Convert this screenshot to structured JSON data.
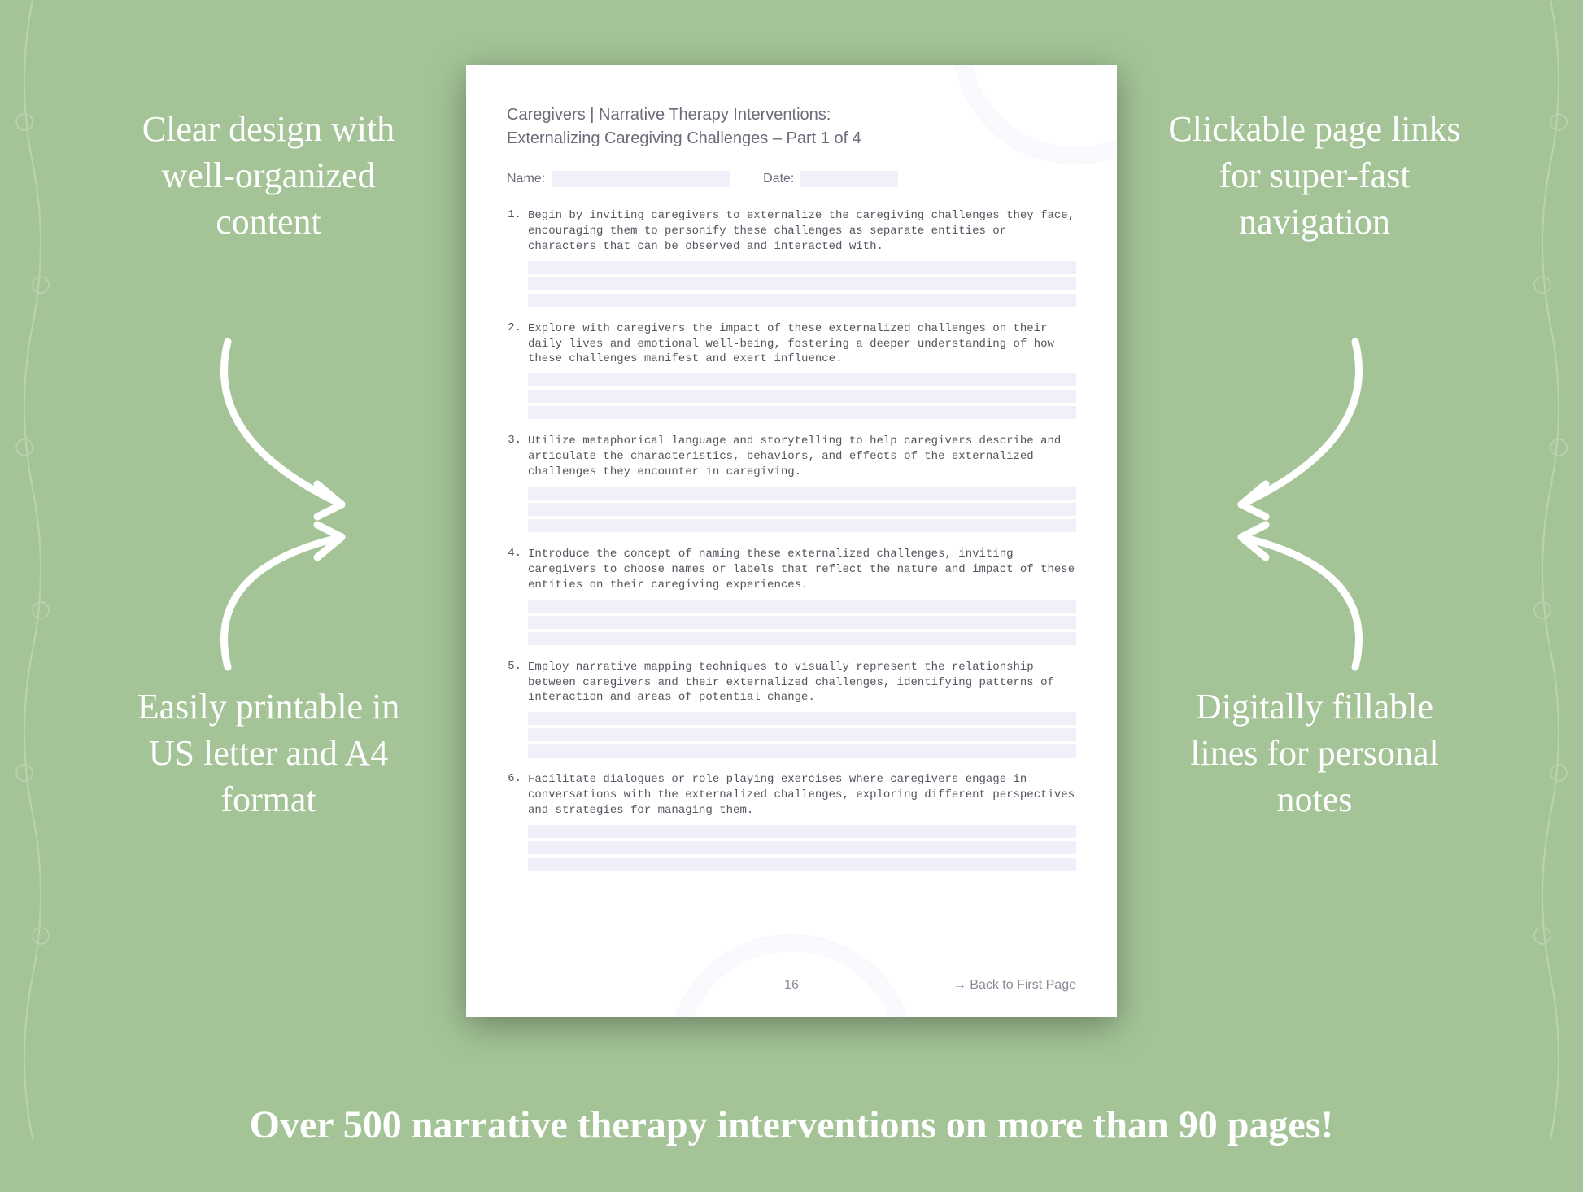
{
  "background_color": "#a4c497",
  "callouts": {
    "top_left": "Clear design with well-organized content",
    "top_right": "Clickable page links for super-fast navigation",
    "bottom_left": "Easily printable in US letter and A4 format",
    "bottom_right": "Digitally fillable lines for personal notes"
  },
  "banner": "Over 500 narrative therapy interventions on more than 90 pages!",
  "page": {
    "header": "Caregivers | Narrative Therapy Interventions:",
    "subheader": "Externalizing Caregiving Challenges – Part 1 of 4",
    "name_label": "Name:",
    "date_label": "Date:",
    "items": [
      "Begin by inviting caregivers to externalize the caregiving challenges they face, encouraging them to personify these challenges as separate entities or characters that can be observed and interacted with.",
      "Explore with caregivers the impact of these externalized challenges on their daily lives and emotional well-being, fostering a deeper understanding of how these challenges manifest and exert influence.",
      "Utilize metaphorical language and storytelling to help caregivers describe and articulate the characteristics, behaviors, and effects of the externalized challenges they encounter in caregiving.",
      "Introduce the concept of naming these externalized challenges, inviting caregivers to choose names or labels that reflect the nature and impact of these entities on their caregiving experiences.",
      "Employ narrative mapping techniques to visually represent the relationship between caregivers and their externalized challenges, identifying patterns of interaction and areas of potential change.",
      "Facilitate dialogues or role-playing exercises where caregivers engage in conversations with the externalized challenges, exploring different perspectives and strategies for managing them."
    ],
    "page_number": "16",
    "back_link": "→ Back to First Page",
    "fill_color": "#f2effb",
    "text_color": "#6b6b7a",
    "body_font": "Courier New",
    "lines_per_item": 3
  },
  "style": {
    "callout_color": "#ffffff",
    "callout_fontsize": 44,
    "banner_fontsize": 48,
    "arrow_color": "#ffffff",
    "arrow_stroke": 9
  }
}
